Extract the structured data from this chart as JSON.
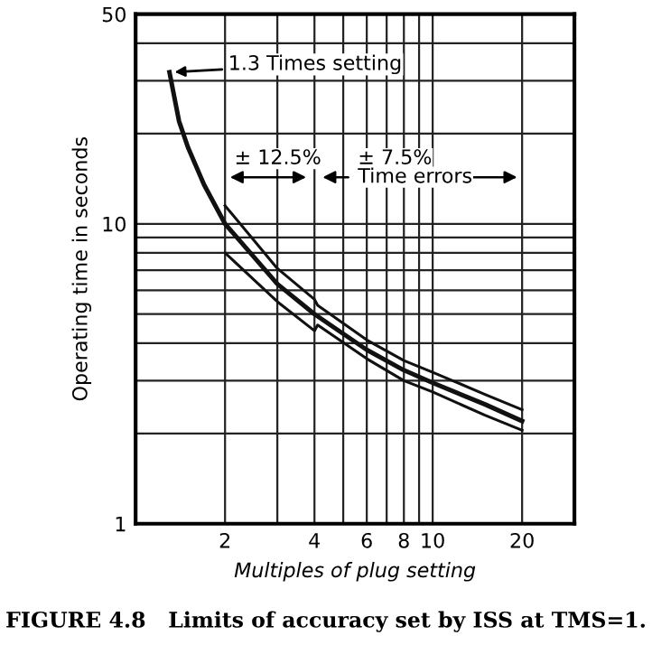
{
  "chart_data": {
    "type": "line",
    "title": "FIGURE 4.8   Limits of accuracy set by ISS at TMS=1.",
    "xlabel": "Multiples of plug setting",
    "ylabel": "Operating time in seconds",
    "log": "xy",
    "xlim": [
      1,
      30
    ],
    "ylim": [
      1,
      50
    ],
    "xticks": [
      2,
      4,
      6,
      8,
      10,
      20
    ],
    "yticks": [
      1,
      10,
      50
    ],
    "grid": true,
    "legend": false,
    "marker": "none",
    "line_style": "solid",
    "series": [
      {
        "color": "#111111",
        "x": [
          1.3,
          1.4,
          1.5,
          1.7,
          2,
          3,
          4,
          5,
          6,
          8,
          10,
          15,
          20
        ],
        "values": [
          32,
          22,
          18,
          13.5,
          10,
          6.3,
          5.0,
          4.3,
          3.8,
          3.25,
          2.95,
          2.5,
          2.2
        ]
      },
      {
        "color": "#111111",
        "x": [
          2,
          3,
          4,
          4.1,
          6,
          8,
          10,
          15,
          20
        ],
        "values": [
          11.5,
          7.1,
          5.6,
          5.35,
          4.1,
          3.5,
          3.2,
          2.7,
          2.4
        ]
      },
      {
        "color": "#111111",
        "x": [
          2,
          3,
          4,
          4.1,
          6,
          8,
          10,
          15,
          20
        ],
        "values": [
          8,
          5.5,
          4.4,
          4.6,
          3.55,
          3.0,
          2.75,
          2.3,
          2.05
        ]
      }
    ],
    "annotations": [
      {
        "text": "1.3 Times setting",
        "x": 1.3,
        "y": 32
      },
      "± 12.5%",
      "± 7.5%",
      "Time errors"
    ]
  }
}
